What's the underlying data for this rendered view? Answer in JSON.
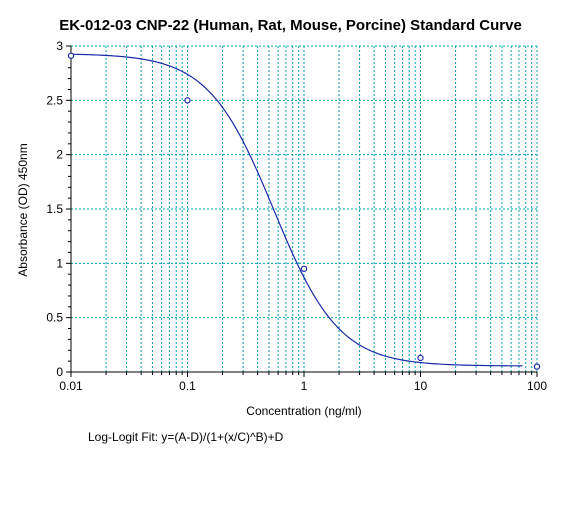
{
  "chart_data": {
    "type": "scatter",
    "title": "EK-012-03 CNP-22 (Human, Rat, Mouse, Porcine) Standard Curve",
    "xlabel": "Concentration (ng/ml)",
    "ylabel": "Absorbance (OD) 450nm",
    "xscale": "log",
    "xlim": [
      0.01,
      100
    ],
    "ylim": [
      0,
      3
    ],
    "grid": true,
    "x_ticks": [
      "0.01",
      "0.1",
      "1",
      "10",
      "100"
    ],
    "y_ticks": [
      "0",
      "0.5",
      "1",
      "1.5",
      "2",
      "2.5",
      "3"
    ],
    "points": [
      {
        "x": 0.01,
        "y": 2.91
      },
      {
        "x": 0.1,
        "y": 2.5
      },
      {
        "x": 1,
        "y": 0.95
      },
      {
        "x": 10,
        "y": 0.13
      },
      {
        "x": 100,
        "y": 0.05
      }
    ],
    "fit": {
      "model": "4PL",
      "label": "Log-Logit Fit: y=(A-D)/(1+(x/C)^B)+D",
      "A": 2.93,
      "B": 1.55,
      "C": 0.55,
      "D": 0.055,
      "x_range": [
        0.01,
        75
      ]
    },
    "colors": {
      "curve": "#1a2aa8",
      "points": "#1a2aa8",
      "vgrid": "#00a0b0",
      "hgrid": "#00a0b0",
      "axis": "#000000"
    }
  }
}
